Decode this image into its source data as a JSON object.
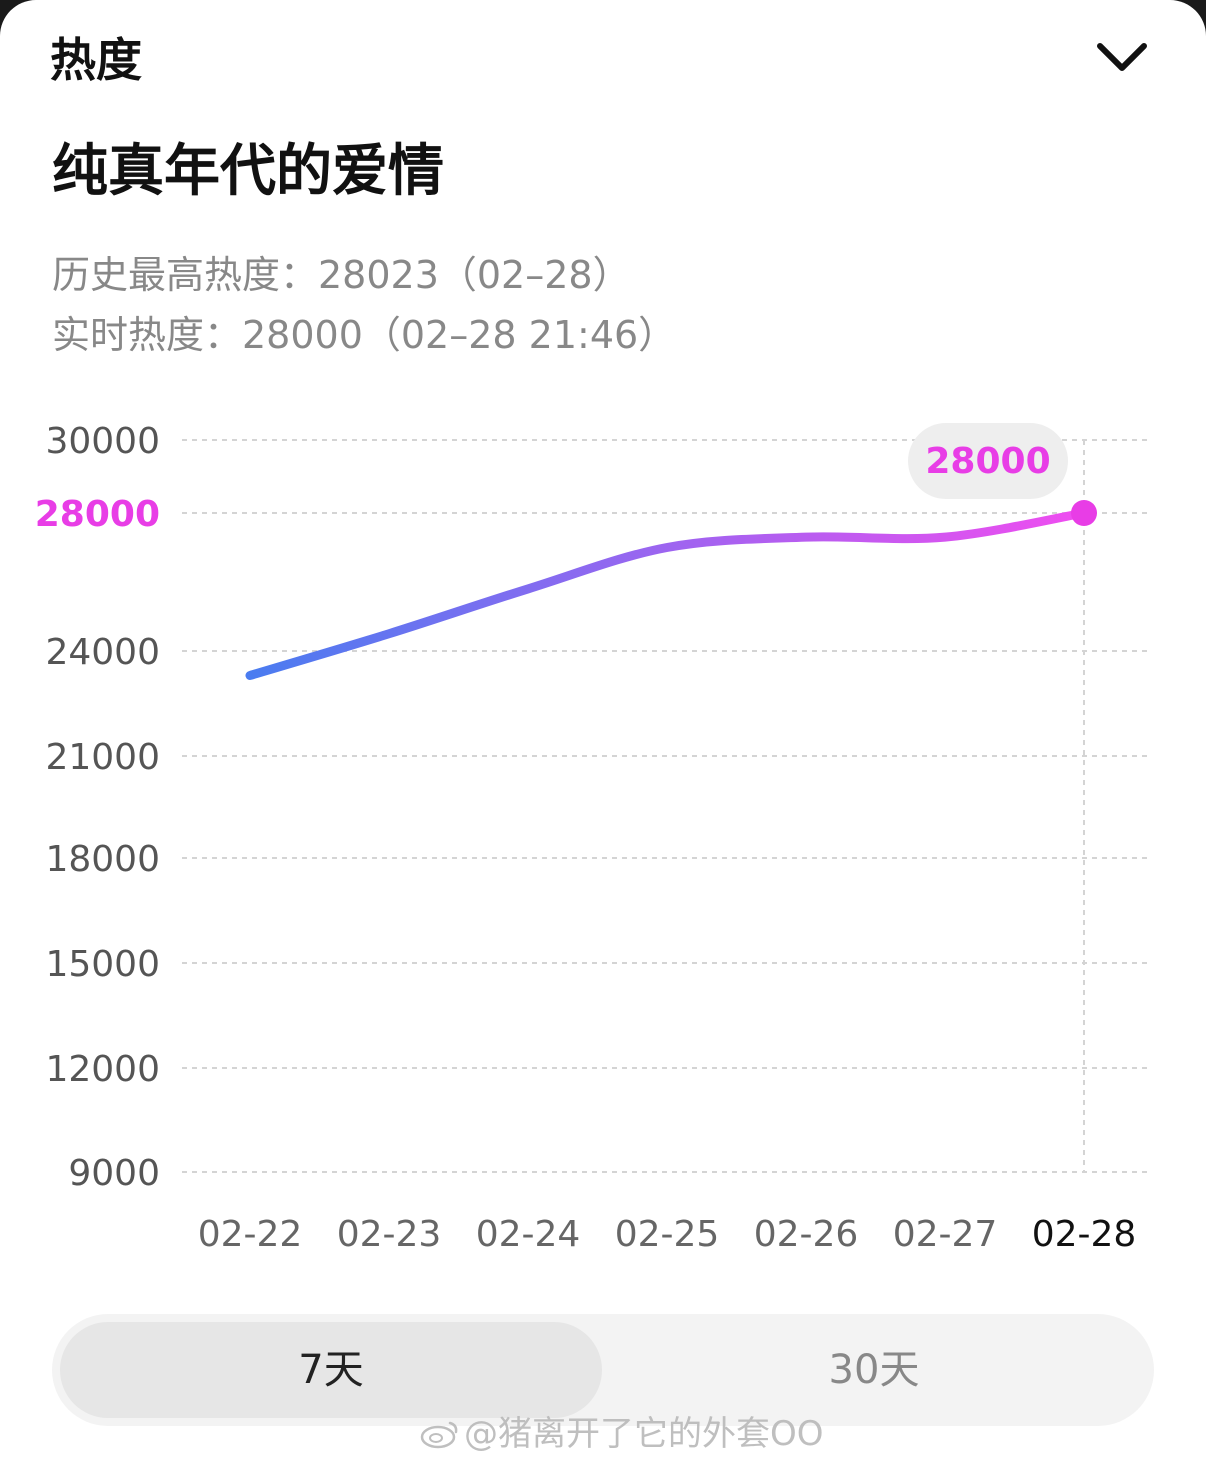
{
  "header": {
    "title": "热度"
  },
  "show": {
    "title": "纯真年代的爱情"
  },
  "stats": {
    "historic_peak": "历史最高热度：28023（02–28）",
    "realtime": "实时热度：28000（02–28 21:46）"
  },
  "chart_data": {
    "type": "line",
    "x": [
      "02-22",
      "02-23",
      "02-24",
      "02-25",
      "02-26",
      "02-27",
      "02-28"
    ],
    "series": [
      {
        "values": [
          23300,
          24500,
          25800,
          27000,
          27300,
          27300,
          28000
        ]
      }
    ],
    "y_ticks": [
      9000,
      12000,
      15000,
      18000,
      21000,
      24000,
      28000,
      30000
    ],
    "ylim": [
      9000,
      30000
    ],
    "highlight": {
      "x": "02-28",
      "value": 28000,
      "label": "28000"
    },
    "grid": true,
    "colors": {
      "gradient_start": "#4a7cf0",
      "gradient_end": "#f04df0",
      "highlight": "#e83de6"
    }
  },
  "range_tabs": {
    "active": "7天",
    "inactive": "30天"
  },
  "watermark": {
    "text": "@猪离开了它的外套OO"
  }
}
